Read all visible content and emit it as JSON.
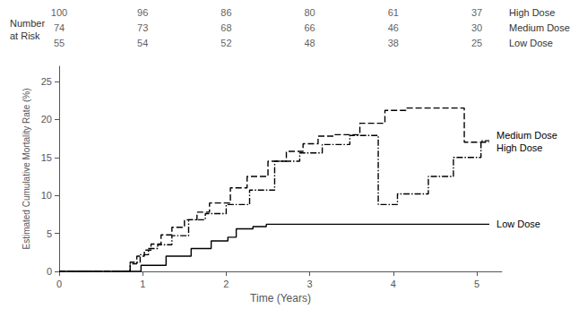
{
  "chart_data": {
    "type": "line",
    "xlabel": "Time (Years)",
    "ylabel": "Estimated Cumulative Mortality Rate (%)",
    "xlim": [
      0,
      5.3
    ],
    "ylim": [
      0,
      27
    ],
    "xticks": [
      0,
      1,
      2,
      3,
      4,
      5
    ],
    "yticks": [
      0,
      5,
      10,
      15,
      20,
      25
    ],
    "grid": false,
    "series": [
      {
        "name": "High Dose",
        "color": "#000000",
        "line_style": "dashed",
        "x": [
          0,
          0.85,
          0.85,
          0.93,
          0.93,
          1.02,
          1.02,
          1.1,
          1.1,
          1.22,
          1.22,
          1.35,
          1.35,
          1.5,
          1.5,
          1.65,
          1.65,
          1.8,
          1.8,
          2.05,
          2.05,
          2.25,
          2.25,
          2.5,
          2.5,
          2.72,
          2.72,
          2.92,
          2.92,
          3.1,
          3.1,
          3.3,
          3.3,
          3.6,
          3.6,
          3.9,
          3.9,
          4.15,
          4.15,
          4.55,
          4.55,
          4.85,
          4.85,
          5.15
        ],
        "values": [
          0,
          0,
          1.0,
          1.0,
          2.0,
          2.0,
          2.8,
          2.8,
          3.6,
          3.6,
          4.8,
          4.8,
          5.8,
          5.8,
          6.8,
          6.8,
          7.8,
          7.8,
          9.0,
          9.0,
          11.0,
          11.0,
          12.5,
          12.5,
          14.5,
          14.5,
          15.8,
          15.8,
          16.8,
          16.8,
          17.8,
          17.8,
          18.0,
          18.0,
          19.5,
          19.5,
          21.2,
          21.2,
          21.5,
          21.5,
          21.5,
          21.5,
          17.0,
          17.0
        ]
      },
      {
        "name": "Medium Dose",
        "color": "#000000",
        "line_style": "dashdot",
        "x": [
          0,
          0.85,
          0.85,
          0.97,
          0.97,
          1.07,
          1.07,
          1.18,
          1.18,
          1.35,
          1.35,
          1.55,
          1.55,
          1.75,
          1.75,
          2.0,
          2.0,
          2.28,
          2.28,
          2.58,
          2.58,
          2.88,
          2.88,
          3.15,
          3.15,
          3.48,
          3.48,
          3.82,
          3.82,
          4.05,
          4.05,
          4.42,
          4.42,
          4.72,
          4.72,
          5.05,
          5.05,
          5.15
        ],
        "values": [
          0,
          0,
          1.2,
          1.2,
          2.2,
          2.2,
          3.0,
          3.0,
          3.5,
          3.5,
          4.7,
          4.7,
          6.8,
          6.8,
          7.6,
          7.6,
          8.8,
          8.8,
          10.7,
          10.7,
          14.5,
          14.5,
          15.6,
          15.6,
          16.7,
          16.7,
          17.9,
          17.9,
          8.8,
          8.8,
          10.2,
          10.2,
          12.5,
          12.5,
          15.0,
          15.0,
          17.2,
          17.2
        ]
      },
      {
        "name": "Low Dose",
        "color": "#000000",
        "line_style": "solid",
        "x": [
          0,
          0.98,
          0.98,
          1.28,
          1.28,
          1.58,
          1.58,
          1.82,
          1.82,
          2.02,
          2.02,
          2.12,
          2.12,
          2.32,
          2.32,
          2.48,
          2.48,
          5.15
        ],
        "values": [
          0,
          0,
          0.8,
          0.8,
          2.0,
          2.0,
          3.0,
          3.0,
          4.0,
          4.0,
          4.5,
          4.5,
          5.6,
          5.6,
          5.9,
          5.9,
          6.2,
          6.2
        ]
      }
    ],
    "risk_table": {
      "label": "Number\nat Risk",
      "times": [
        0,
        1,
        2,
        3,
        4,
        5
      ],
      "rows": [
        {
          "name": "High Dose",
          "values": [
            100,
            96,
            86,
            80,
            61,
            37
          ]
        },
        {
          "name": "Medium Dose",
          "values": [
            74,
            73,
            68,
            66,
            46,
            30
          ]
        },
        {
          "name": "Low Dose",
          "values": [
            55,
            54,
            52,
            48,
            38,
            25
          ]
        }
      ]
    }
  }
}
